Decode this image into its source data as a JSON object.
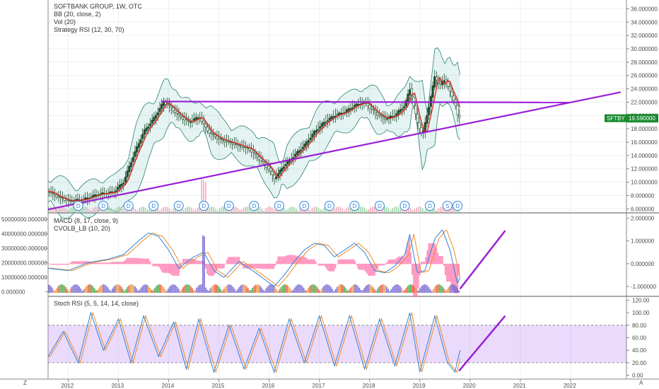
{
  "title_lines": [
    "SOFTBANK GROUP, 1W, OTC",
    "BB (20, close, 2)",
    "Vol (20)",
    "Strategy RSI (12, 30, 70)"
  ],
  "macd_lines": [
    "MACD (8, 17, close, 9)",
    "CVOLB_LB (10, 20)"
  ],
  "stoch_label": "Stoch RSI (5, 5, 14, 14, close)",
  "price_badge": {
    "symbol": "SFTBY",
    "value": "19.590000"
  },
  "corner_labels": {
    "left": "Z",
    "right": "A"
  },
  "dividend_marker": "D",
  "split_marker": "S",
  "colors": {
    "up": "#26a69a",
    "candle": "#1f4b2c",
    "basis": "#e0201b",
    "band": "#3e8e7e",
    "trend": "#9b1fd6",
    "macd": "#2f84d8",
    "signal": "#f08a24",
    "hist_pos": "#33a02c",
    "hist_neg": "#ff6fa8",
    "stoch_k": "#2f84d8",
    "stoch_d": "#f08a24",
    "badge": "#1a8a2f"
  },
  "chart_data": [
    {
      "type": "candlestick",
      "title": "SOFTBANK GROUP, 1W, OTC",
      "x_range": [
        2011.6,
        2023.1
      ],
      "ylim": [
        5.5,
        37
      ],
      "y_ticks": [
        "6.000000",
        "8.000000",
        "10.000000",
        "12.000000",
        "14.000000",
        "16.000000",
        "18.000000",
        "20.000000",
        "22.000000",
        "24.000000",
        "26.000000",
        "28.000000",
        "30.000000",
        "32.000000",
        "34.000000",
        "36.000000"
      ],
      "x_ticks": [
        "2012",
        "2013",
        "2014",
        "2015",
        "2016",
        "2017",
        "2018",
        "2019",
        "2020",
        "2021",
        "2022"
      ],
      "close_series": [
        {
          "date": 2011.6,
          "close": 8.6
        },
        {
          "date": 2011.8,
          "close": 7.8
        },
        {
          "date": 2012.0,
          "close": 7.2
        },
        {
          "date": 2012.3,
          "close": 7.4
        },
        {
          "date": 2012.6,
          "close": 8.2
        },
        {
          "date": 2012.9,
          "close": 8.5
        },
        {
          "date": 2013.1,
          "close": 10.0
        },
        {
          "date": 2013.3,
          "close": 14.0
        },
        {
          "date": 2013.5,
          "close": 17.5
        },
        {
          "date": 2013.7,
          "close": 19.5
        },
        {
          "date": 2013.9,
          "close": 22.0
        },
        {
          "date": 2014.0,
          "close": 21.5
        },
        {
          "date": 2014.2,
          "close": 20.0
        },
        {
          "date": 2014.4,
          "close": 19.0
        },
        {
          "date": 2014.6,
          "close": 19.8
        },
        {
          "date": 2014.8,
          "close": 17.5
        },
        {
          "date": 2015.0,
          "close": 16.5
        },
        {
          "date": 2015.2,
          "close": 16.0
        },
        {
          "date": 2015.4,
          "close": 15.5
        },
        {
          "date": 2015.6,
          "close": 15.0
        },
        {
          "date": 2015.8,
          "close": 13.5
        },
        {
          "date": 2016.0,
          "close": 12.0
        },
        {
          "date": 2016.1,
          "close": 10.5
        },
        {
          "date": 2016.3,
          "close": 12.5
        },
        {
          "date": 2016.5,
          "close": 14.0
        },
        {
          "date": 2016.7,
          "close": 15.5
        },
        {
          "date": 2016.9,
          "close": 17.5
        },
        {
          "date": 2017.1,
          "close": 19.0
        },
        {
          "date": 2017.3,
          "close": 20.0
        },
        {
          "date": 2017.5,
          "close": 20.5
        },
        {
          "date": 2017.7,
          "close": 21.5
        },
        {
          "date": 2017.9,
          "close": 22.0
        },
        {
          "date": 2018.1,
          "close": 20.5
        },
        {
          "date": 2018.3,
          "close": 19.5
        },
        {
          "date": 2018.5,
          "close": 20.0
        },
        {
          "date": 2018.7,
          "close": 21.5
        },
        {
          "date": 2018.8,
          "close": 24.0
        },
        {
          "date": 2018.95,
          "close": 19.0
        },
        {
          "date": 2019.05,
          "close": 17.0
        },
        {
          "date": 2019.2,
          "close": 22.0
        },
        {
          "date": 2019.3,
          "close": 26.0
        },
        {
          "date": 2019.4,
          "close": 24.5
        },
        {
          "date": 2019.5,
          "close": 25.5
        },
        {
          "date": 2019.6,
          "close": 23.5
        },
        {
          "date": 2019.7,
          "close": 22.0
        },
        {
          "date": 2019.75,
          "close": 20.0
        },
        {
          "date": 2019.8,
          "close": 19.6
        }
      ],
      "last_close": 19.59,
      "trendlines": [
        {
          "name": "horizontal resistance",
          "points": [
            [
              2013.85,
              22.1
            ],
            [
              2022.0,
              21.95
            ]
          ]
        },
        {
          "name": "rising support",
          "points": [
            [
              2011.6,
              5.9
            ],
            [
              2023.0,
              23.5
            ]
          ]
        }
      ],
      "markers": {
        "dividend_dates": [
          2012.2,
          2012.7,
          2013.2,
          2013.7,
          2014.2,
          2014.7,
          2015.2,
          2015.7,
          2016.2,
          2016.7,
          2017.2,
          2017.7,
          2018.2,
          2018.7,
          2019.2,
          2019.75
        ],
        "split_date": 2019.55
      }
    },
    {
      "type": "line",
      "title": "MACD (8, 17, close, 9)",
      "ylim": [
        -1.4,
        2.2
      ],
      "y_ticks": [
        "2.000000",
        "1.000000",
        "0.000000",
        "-1.000000"
      ],
      "left_y_ticks": [
        "50000000.000000",
        "40000000.000000",
        "30000000.000000",
        "20000000.000000",
        "10000000.000000",
        "0.000000"
      ],
      "series": [
        {
          "name": "MACD",
          "points": [
            [
              2011.6,
              -0.2
            ],
            [
              2012.0,
              -0.3
            ],
            [
              2012.4,
              0.05
            ],
            [
              2012.8,
              0.2
            ],
            [
              2013.1,
              0.4
            ],
            [
              2013.4,
              1.0
            ],
            [
              2013.6,
              1.35
            ],
            [
              2013.8,
              1.2
            ],
            [
              2014.0,
              0.6
            ],
            [
              2014.2,
              -0.2
            ],
            [
              2014.5,
              0.3
            ],
            [
              2014.7,
              0.5
            ],
            [
              2014.9,
              -0.3
            ],
            [
              2015.1,
              -0.6
            ],
            [
              2015.4,
              0.1
            ],
            [
              2015.6,
              -0.2
            ],
            [
              2015.8,
              -0.5
            ],
            [
              2016.1,
              -1.0
            ],
            [
              2016.3,
              -0.5
            ],
            [
              2016.5,
              0.1
            ],
            [
              2016.7,
              0.6
            ],
            [
              2016.9,
              0.9
            ],
            [
              2017.1,
              0.8
            ],
            [
              2017.3,
              0.3
            ],
            [
              2017.5,
              0.6
            ],
            [
              2017.7,
              0.9
            ],
            [
              2017.9,
              0.5
            ],
            [
              2018.1,
              -0.3
            ],
            [
              2018.3,
              -0.4
            ],
            [
              2018.5,
              -0.1
            ],
            [
              2018.7,
              0.4
            ],
            [
              2018.8,
              1.3
            ],
            [
              2018.95,
              -0.4
            ],
            [
              2019.1,
              -0.3
            ],
            [
              2019.3,
              1.1
            ],
            [
              2019.45,
              1.5
            ],
            [
              2019.6,
              0.6
            ],
            [
              2019.75,
              -0.9
            ],
            [
              2019.8,
              -0.6
            ]
          ]
        }
      ],
      "projection": {
        "from": [
          2019.8,
          -1.1
        ],
        "to": [
          2020.7,
          1.45
        ]
      }
    },
    {
      "type": "line",
      "title": "Stoch RSI (5, 5, 14, 14, close)",
      "ylim": [
        -5,
        125
      ],
      "y_ticks": [
        "0.00",
        "20.00",
        "40.00",
        "60.00",
        "80.00",
        "100.00",
        "120.00"
      ],
      "bands": {
        "upper": 80,
        "lower": 20
      },
      "series": [
        {
          "name": "K",
          "points": [
            [
              2011.6,
              30
            ],
            [
              2011.9,
              70
            ],
            [
              2012.2,
              20
            ],
            [
              2012.45,
              100
            ],
            [
              2012.7,
              40
            ],
            [
              2013.0,
              90
            ],
            [
              2013.25,
              20
            ],
            [
              2013.5,
              95
            ],
            [
              2013.8,
              30
            ],
            [
              2014.1,
              85
            ],
            [
              2014.35,
              10
            ],
            [
              2014.6,
              90
            ],
            [
              2014.9,
              5
            ],
            [
              2015.2,
              80
            ],
            [
              2015.5,
              10
            ],
            [
              2015.8,
              75
            ],
            [
              2016.1,
              5
            ],
            [
              2016.4,
              90
            ],
            [
              2016.7,
              20
            ],
            [
              2017.0,
              95
            ],
            [
              2017.3,
              15
            ],
            [
              2017.6,
              95
            ],
            [
              2017.9,
              10
            ],
            [
              2018.2,
              90
            ],
            [
              2018.5,
              15
            ],
            [
              2018.8,
              100
            ],
            [
              2019.0,
              5
            ],
            [
              2019.3,
              95
            ],
            [
              2019.55,
              20
            ],
            [
              2019.7,
              5
            ],
            [
              2019.8,
              40
            ]
          ]
        }
      ],
      "projection": {
        "from": [
          2019.78,
          7
        ],
        "to": [
          2020.7,
          95
        ]
      }
    }
  ]
}
